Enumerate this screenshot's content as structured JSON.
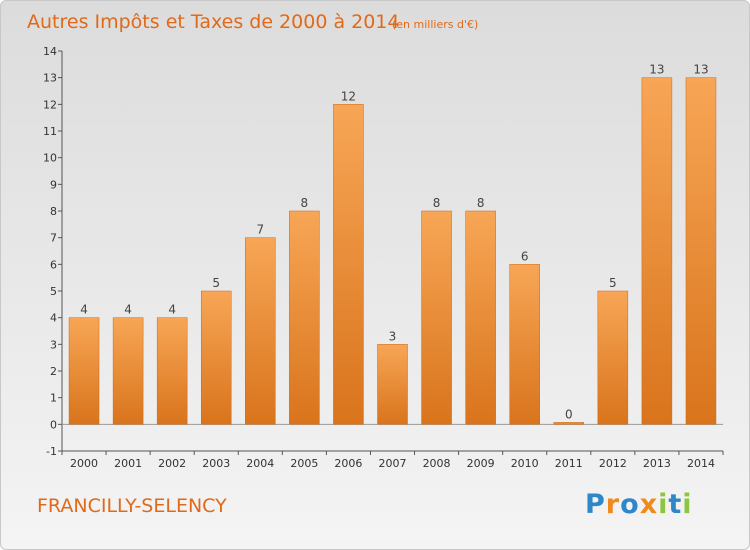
{
  "chart_data": {
    "type": "bar",
    "title": "Autres Impôts et Taxes de 2000 à 2014",
    "subtitle": "(en milliers d'€)",
    "categories": [
      "2000",
      "2001",
      "2002",
      "2003",
      "2004",
      "2005",
      "2006",
      "2007",
      "2008",
      "2009",
      "2010",
      "2011",
      "2012",
      "2013",
      "2014"
    ],
    "values": [
      4,
      4,
      4,
      5,
      7,
      8,
      12,
      3,
      8,
      8,
      6,
      0,
      5,
      13,
      13
    ],
    "ylim": [
      -1,
      14
    ],
    "yticks": [
      "-1",
      "0",
      "1",
      "2",
      "3",
      "4",
      "5",
      "6",
      "7",
      "8",
      "9",
      "10",
      "11",
      "12",
      "13",
      "14"
    ],
    "grid": false,
    "xlabel": "",
    "ylabel": "",
    "bar_color": "#f0923a"
  },
  "footer": {
    "commune": "FRANCILLY-SELENCY",
    "brand_letters": [
      {
        "ch": "P",
        "color": "#2f86c8"
      },
      {
        "ch": "r",
        "color": "#f08a1c"
      },
      {
        "ch": "o",
        "color": "#2f86c8"
      },
      {
        "ch": "x",
        "color": "#f08a1c"
      },
      {
        "ch": "i",
        "color": "#8cc63f"
      },
      {
        "ch": "t",
        "color": "#2f86c8"
      },
      {
        "ch": "i",
        "color": "#8cc63f"
      }
    ]
  }
}
